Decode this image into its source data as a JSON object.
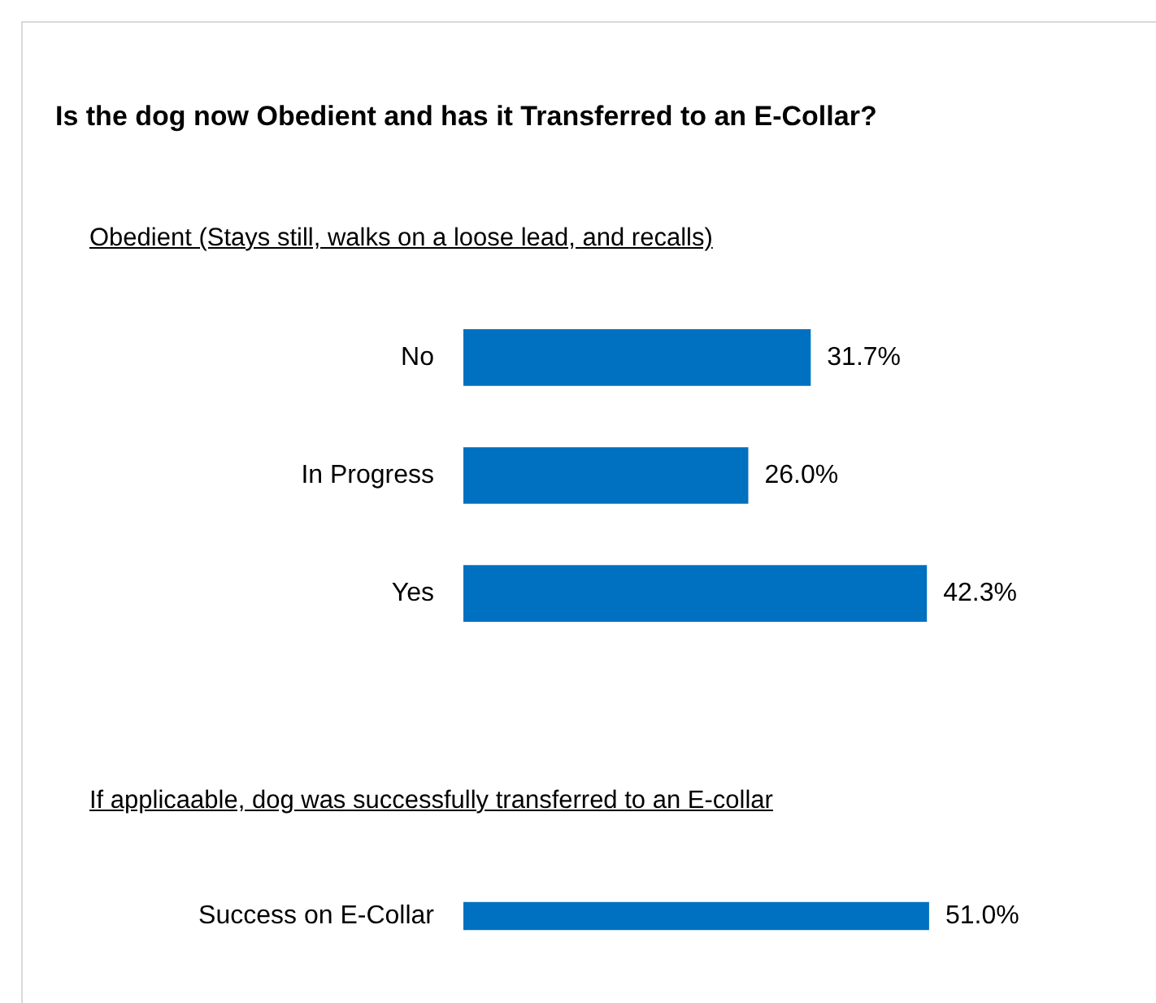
{
  "chart_data": [
    {
      "type": "bar",
      "orientation": "horizontal",
      "title": "Is the dog now Obedient and has it Transferred to an E-Collar?",
      "subtitle": "Obedient (Stays still, walks on a loose lead, and recalls)",
      "categories": [
        "No",
        "In Progress",
        "Yes"
      ],
      "values": [
        31.7,
        26.0,
        42.3
      ],
      "value_labels": [
        "31.7%",
        "26.0%",
        "42.3%"
      ],
      "color": "#0070c0",
      "tick_labels": "y",
      "legend": false
    },
    {
      "type": "bar",
      "orientation": "horizontal",
      "subtitle": "If applicaable, dog was successfully transferred  to an E-collar",
      "categories": [
        "Success on E-Collar"
      ],
      "values": [
        51.0
      ],
      "value_labels": [
        "51.0%"
      ],
      "color": "#0070c0",
      "tick_labels": "y",
      "legend": false
    }
  ]
}
